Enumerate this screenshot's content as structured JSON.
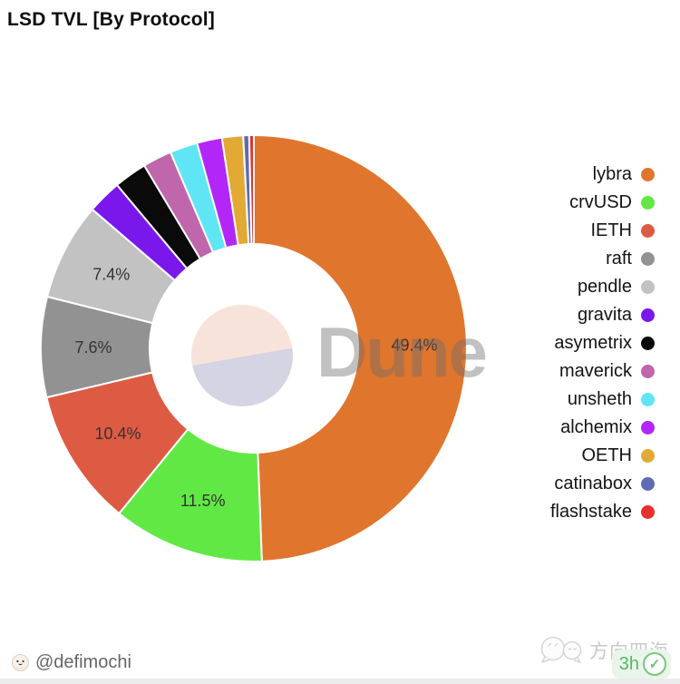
{
  "title": "LSD TVL [By Protocol]",
  "watermark": {
    "brand": "Dune"
  },
  "footer": {
    "author_handle": "@defimochi",
    "right_watermark": "方向四海",
    "badge_text": "3h",
    "badge_icon": "verified-check"
  },
  "chart_data": {
    "type": "pie",
    "subtype": "donut",
    "title": "LSD TVL [By Protocol]",
    "unit": "%",
    "legend_position": "right",
    "label_threshold_note": "only slices >= 7.4% show data labels",
    "segments": [
      {
        "label": "lybra",
        "value": 49.4,
        "display": "49.4%",
        "show_label": true,
        "color": "#E0752D"
      },
      {
        "label": "crvUSD",
        "value": 11.5,
        "display": "11.5%",
        "show_label": true,
        "color": "#62E845"
      },
      {
        "label": "IETH",
        "value": 10.4,
        "display": "10.4%",
        "show_label": true,
        "color": "#DE5B43"
      },
      {
        "label": "raft",
        "value": 7.6,
        "display": "7.6%",
        "show_label": true,
        "color": "#929292"
      },
      {
        "label": "pendle",
        "value": 7.4,
        "display": "7.4%",
        "show_label": true,
        "color": "#C2C2C2"
      },
      {
        "label": "gravita",
        "value": 2.6,
        "display": "",
        "show_label": false,
        "color": "#7A18EC"
      },
      {
        "label": "asymetrix",
        "value": 2.5,
        "display": "",
        "show_label": false,
        "color": "#0A0A0A"
      },
      {
        "label": "maverick",
        "value": 2.2,
        "display": "",
        "show_label": false,
        "color": "#C066AC"
      },
      {
        "label": "unsheth",
        "value": 2.1,
        "display": "",
        "show_label": false,
        "color": "#5FE5F4"
      },
      {
        "label": "alchemix",
        "value": 1.9,
        "display": "",
        "show_label": false,
        "color": "#B227F8"
      },
      {
        "label": "OETH",
        "value": 1.6,
        "display": "",
        "show_label": false,
        "color": "#E2A935"
      },
      {
        "label": "catinabox",
        "value": 0.45,
        "display": "",
        "show_label": false,
        "color": "#5F6CB3"
      },
      {
        "label": "flashstake",
        "value": 0.35,
        "display": "",
        "show_label": false,
        "color": "#E6312B"
      }
    ]
  }
}
